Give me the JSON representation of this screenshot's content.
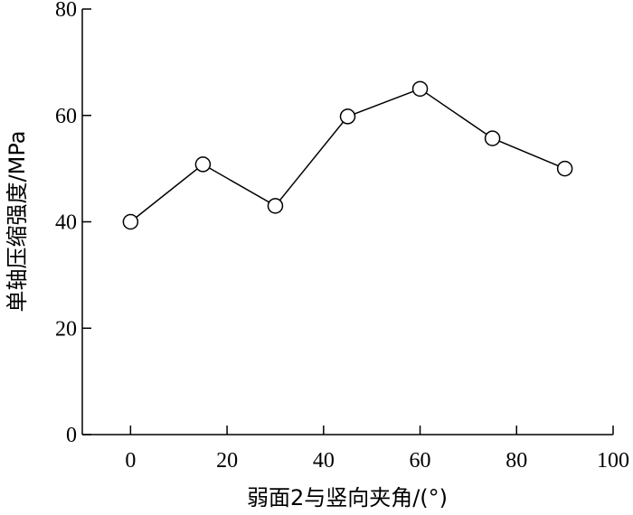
{
  "chart_data": {
    "type": "line",
    "title": "",
    "xlabel": "弱面2与竖向夹角/(°)",
    "ylabel": "单轴压缩强度/MPa",
    "xlim": [
      -10,
      100
    ],
    "ylim": [
      0,
      80
    ],
    "xticks": [
      0,
      20,
      40,
      60,
      80,
      100
    ],
    "yticks": [
      0,
      20,
      40,
      60,
      80
    ],
    "grid": false,
    "legend": "none",
    "marker": "open-circle",
    "series": [
      {
        "x": [
          0,
          15,
          30,
          45,
          60,
          75,
          90
        ],
        "y": [
          40,
          50.8,
          43,
          59.8,
          65,
          55.7,
          50
        ]
      }
    ]
  }
}
